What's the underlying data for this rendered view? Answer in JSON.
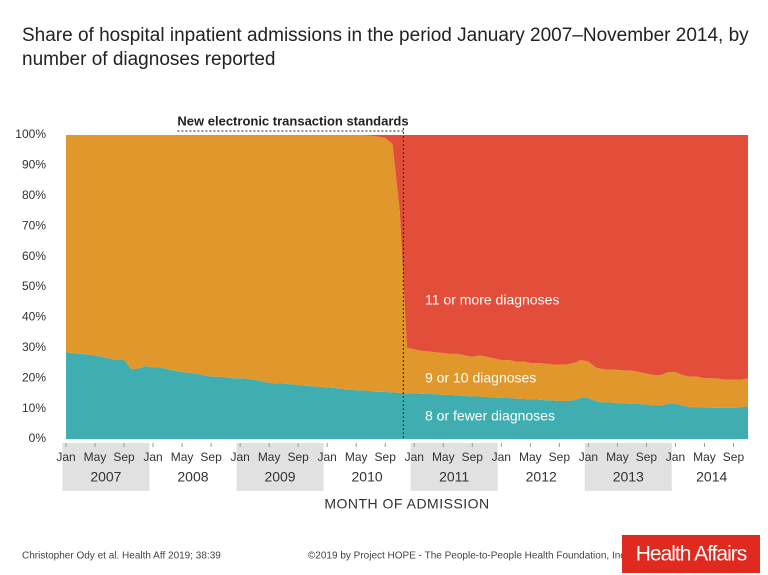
{
  "chart_data": {
    "type": "stacked_area",
    "title": "Share of hospital inpatient admissions in the period January 2007–November 2014, by number of diagnoses reported",
    "xlabel": "MONTH OF ADMISSION",
    "x": [
      "2007-01",
      "2007-02",
      "2007-03",
      "2007-04",
      "2007-05",
      "2007-06",
      "2007-07",
      "2007-08",
      "2007-09",
      "2007-10",
      "2007-11",
      "2007-12",
      "2008-01",
      "2008-02",
      "2008-03",
      "2008-04",
      "2008-05",
      "2008-06",
      "2008-07",
      "2008-08",
      "2008-09",
      "2008-10",
      "2008-11",
      "2008-12",
      "2009-01",
      "2009-02",
      "2009-03",
      "2009-04",
      "2009-05",
      "2009-06",
      "2009-07",
      "2009-08",
      "2009-09",
      "2009-10",
      "2009-11",
      "2009-12",
      "2010-01",
      "2010-02",
      "2010-03",
      "2010-04",
      "2010-05",
      "2010-06",
      "2010-07",
      "2010-08",
      "2010-09",
      "2010-10",
      "2010-11",
      "2010-12",
      "2011-01",
      "2011-02",
      "2011-03",
      "2011-04",
      "2011-05",
      "2011-06",
      "2011-07",
      "2011-08",
      "2011-09",
      "2011-10",
      "2011-11",
      "2011-12",
      "2012-01",
      "2012-02",
      "2012-03",
      "2012-04",
      "2012-05",
      "2012-06",
      "2012-07",
      "2012-08",
      "2012-09",
      "2012-10",
      "2012-11",
      "2012-12",
      "2013-01",
      "2013-02",
      "2013-03",
      "2013-04",
      "2013-05",
      "2013-06",
      "2013-07",
      "2013-08",
      "2013-09",
      "2013-10",
      "2013-11",
      "2013-12",
      "2014-01",
      "2014-02",
      "2014-03",
      "2014-04",
      "2014-05",
      "2014-06",
      "2014-07",
      "2014-08",
      "2014-09",
      "2014-10",
      "2014-11"
    ],
    "series": [
      {
        "name": "8 or fewer diagnoses",
        "color": "#40aeb1",
        "values": [
          28.5,
          28.3,
          28.0,
          27.8,
          27.5,
          27.0,
          26.5,
          26.0,
          26.0,
          23.0,
          23.2,
          24.0,
          23.5,
          23.5,
          23.0,
          22.5,
          22.0,
          21.8,
          21.5,
          21.0,
          20.5,
          20.5,
          20.3,
          20.0,
          20.0,
          19.8,
          19.5,
          19.0,
          18.5,
          18.3,
          18.2,
          18.0,
          17.8,
          17.5,
          17.3,
          17.2,
          17.0,
          16.8,
          16.5,
          16.3,
          16.0,
          16.0,
          15.8,
          15.5,
          15.5,
          15.3,
          15.2,
          15.0,
          15.0,
          14.9,
          14.8,
          14.7,
          14.5,
          14.5,
          14.3,
          14.2,
          14.0,
          14.0,
          13.8,
          13.7,
          13.5,
          13.5,
          13.3,
          13.2,
          13.0,
          13.0,
          12.8,
          12.7,
          12.5,
          12.5,
          12.8,
          13.5,
          13.5,
          12.5,
          12.0,
          12.0,
          11.8,
          11.8,
          11.5,
          11.5,
          11.3,
          11.0,
          11.0,
          11.5,
          11.5,
          11.0,
          10.5,
          10.5,
          10.5,
          10.3,
          10.3,
          10.2,
          10.3,
          10.5,
          10.8
        ]
      },
      {
        "name": "9 or 10 diagnoses",
        "color": "#e0972b",
        "values": [
          71.5,
          71.7,
          72.0,
          72.2,
          72.5,
          73.0,
          73.5,
          74.0,
          74.0,
          77.0,
          76.8,
          76.0,
          76.5,
          76.5,
          77.0,
          77.5,
          78.0,
          78.2,
          78.5,
          79.0,
          79.5,
          79.5,
          79.7,
          80.0,
          80.0,
          80.2,
          80.5,
          81.0,
          81.5,
          81.7,
          81.8,
          82.0,
          82.2,
          82.5,
          82.7,
          82.8,
          83.0,
          83.2,
          83.5,
          83.7,
          84.0,
          83.9,
          84.0,
          84.0,
          83.5,
          81.7,
          59.8,
          15.0,
          14.5,
          14.1,
          14.0,
          13.8,
          13.8,
          13.5,
          13.7,
          13.3,
          13.0,
          13.5,
          13.2,
          12.8,
          12.5,
          12.5,
          12.2,
          12.3,
          12.0,
          12.0,
          12.0,
          11.8,
          12.0,
          12.0,
          12.2,
          12.5,
          12.0,
          11.0,
          11.0,
          10.8,
          11.0,
          10.7,
          11.0,
          10.5,
          10.2,
          10.0,
          10.0,
          10.5,
          10.5,
          10.0,
          10.0,
          10.0,
          9.5,
          9.7,
          9.5,
          9.3,
          9.2,
          9.0,
          9.2
        ]
      },
      {
        "name": "11 or more diagnoses",
        "color": "#e24e3a",
        "values": [
          0,
          0,
          0,
          0,
          0,
          0,
          0,
          0,
          0,
          0,
          0,
          0,
          0,
          0,
          0,
          0,
          0,
          0,
          0,
          0,
          0,
          0,
          0,
          0,
          0,
          0,
          0,
          0,
          0,
          0,
          0,
          0,
          0,
          0,
          0,
          0,
          0,
          0,
          0,
          0,
          0,
          0.1,
          0.2,
          0.5,
          1.0,
          3.0,
          25.0,
          70.0,
          70.5,
          71.0,
          71.2,
          71.5,
          71.7,
          72.0,
          72.0,
          72.5,
          73.0,
          72.5,
          73.0,
          73.5,
          74.0,
          74.0,
          74.5,
          74.5,
          75.0,
          75.0,
          75.2,
          75.5,
          75.5,
          75.5,
          75.0,
          74.0,
          74.5,
          76.5,
          77.0,
          77.2,
          77.2,
          77.5,
          77.5,
          78.0,
          78.5,
          79.0,
          79.0,
          78.0,
          78.0,
          79.0,
          79.5,
          79.5,
          80.0,
          80.0,
          80.2,
          80.5,
          80.5,
          80.5,
          80.0
        ]
      }
    ],
    "ylim": [
      0,
      100
    ],
    "yticks": [
      {
        "value": 0,
        "label": "0%"
      },
      {
        "value": 10,
        "label": "10%"
      },
      {
        "value": 20,
        "label": "20%"
      },
      {
        "value": 30,
        "label": "30%"
      },
      {
        "value": 40,
        "label": "40%"
      },
      {
        "value": 50,
        "label": "50%"
      },
      {
        "value": 60,
        "label": "60%"
      },
      {
        "value": 70,
        "label": "70%"
      },
      {
        "value": 80,
        "label": "80%"
      },
      {
        "value": 90,
        "label": "90%"
      },
      {
        "value": 100,
        "label": "100%"
      }
    ],
    "xticks": [
      {
        "value": "2007-01",
        "label": "Jan"
      },
      {
        "value": "2007-05",
        "label": "May"
      },
      {
        "value": "2007-09",
        "label": "Sep"
      },
      {
        "value": "2008-01",
        "label": "Jan"
      },
      {
        "value": "2008-05",
        "label": "May"
      },
      {
        "value": "2008-09",
        "label": "Sep"
      },
      {
        "value": "2009-01",
        "label": "Jan"
      },
      {
        "value": "2009-05",
        "label": "May"
      },
      {
        "value": "2009-09",
        "label": "Sep"
      },
      {
        "value": "2010-01",
        "label": "Jan"
      },
      {
        "value": "2010-05",
        "label": "May"
      },
      {
        "value": "2010-09",
        "label": "Sep"
      },
      {
        "value": "2011-01",
        "label": "Jan"
      },
      {
        "value": "2011-05",
        "label": "May"
      },
      {
        "value": "2011-09",
        "label": "Sep"
      },
      {
        "value": "2012-01",
        "label": "Jan"
      },
      {
        "value": "2012-05",
        "label": "May"
      },
      {
        "value": "2012-09",
        "label": "Sep"
      },
      {
        "value": "2013-01",
        "label": "Jan"
      },
      {
        "value": "2013-05",
        "label": "May"
      },
      {
        "value": "2013-09",
        "label": "Sep"
      },
      {
        "value": "2014-01",
        "label": "Jan"
      },
      {
        "value": "2014-05",
        "label": "May"
      },
      {
        "value": "2014-09",
        "label": "Sep"
      }
    ],
    "years": [
      "2007",
      "2008",
      "2009",
      "2010",
      "2011",
      "2012",
      "2013",
      "2014"
    ],
    "annotation": {
      "text": "New electronic transaction standards",
      "x": "2010-12"
    },
    "source": "Christopher Ody et al. Health Aff 2019; 38:39",
    "copyright": "©2019 by Project HOPE - The People-to-People Health Foundation, Inc.",
    "logo": "Health Affairs"
  }
}
